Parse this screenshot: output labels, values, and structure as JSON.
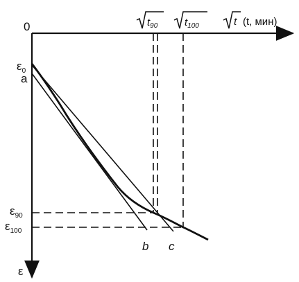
{
  "labels": {
    "origin": "0",
    "eps0": "ε",
    "eps0_sub": "0",
    "a": "a",
    "eps90": "ε",
    "eps90_sub": "90",
    "eps100": "ε",
    "eps100_sub": "100",
    "eps_axis": "ε",
    "b": "b",
    "c": "c",
    "t90_under": "t",
    "t90_sub": "90",
    "t100_under": "t",
    "t100_sub": "100",
    "axis_t_under": "t",
    "axis_units": "(t, мин)"
  },
  "colors": {
    "ink": "#111111",
    "background": "#ffffff"
  }
}
